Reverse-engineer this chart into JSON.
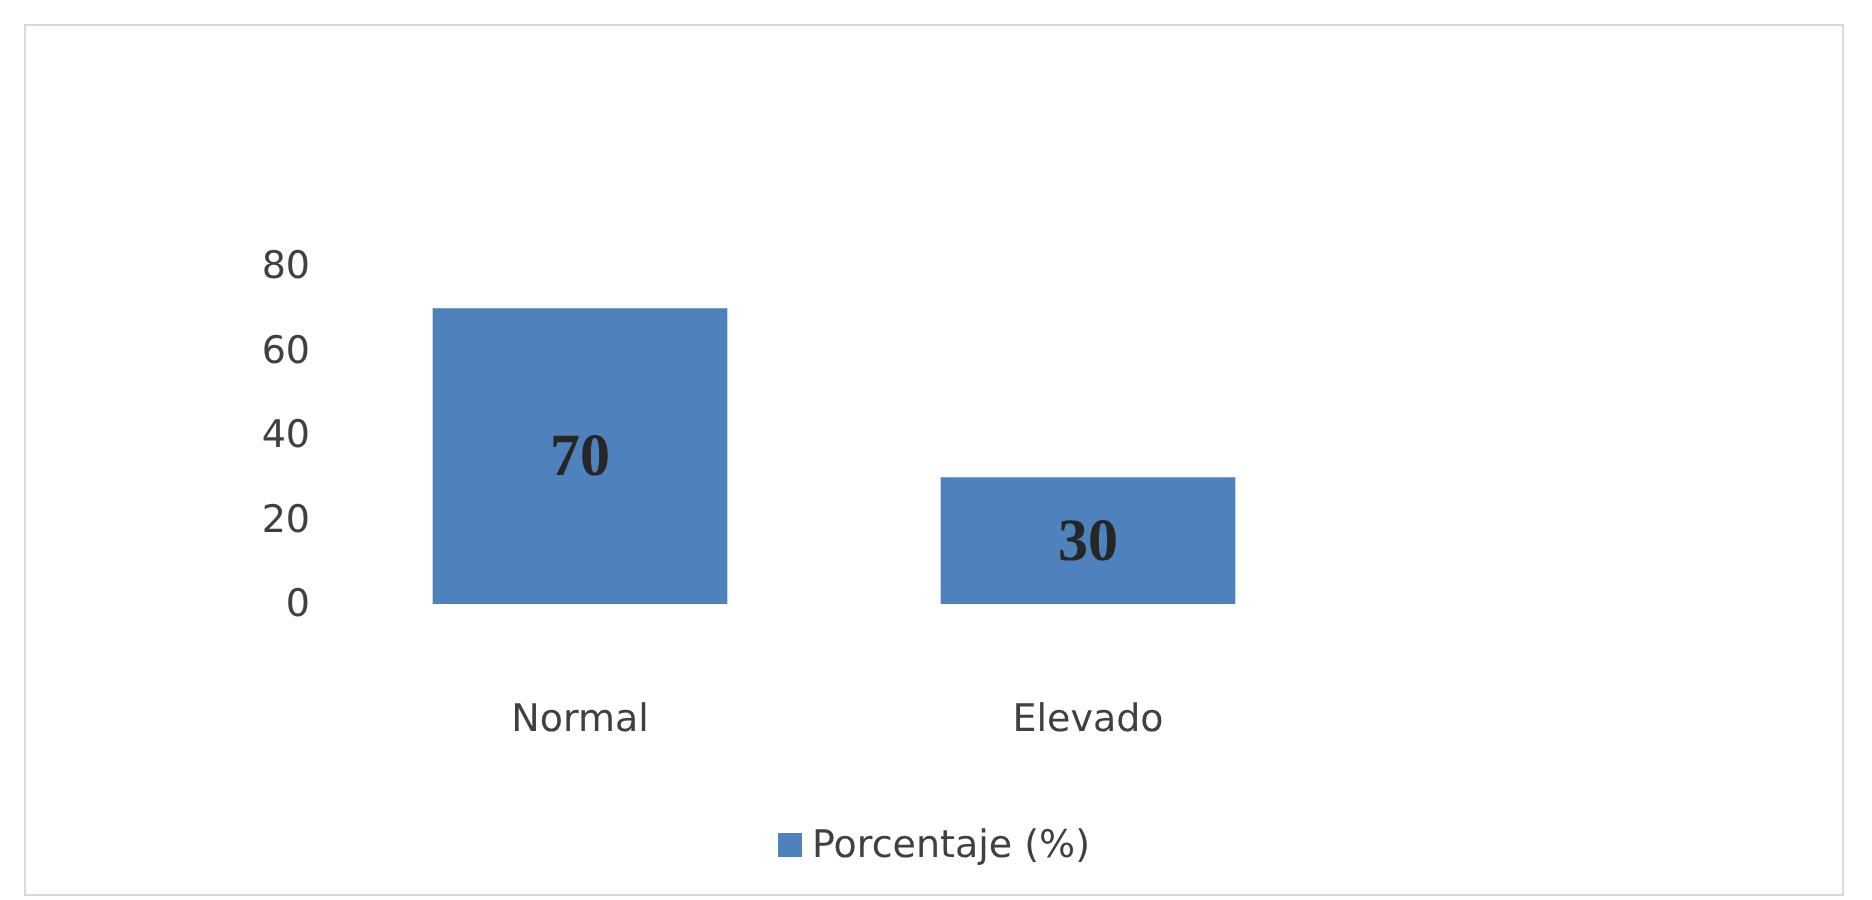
{
  "chart_data": {
    "type": "bar",
    "categories": [
      "Normal",
      "Elevado"
    ],
    "series": [
      {
        "name": "Porcentaje (%)",
        "color": "#4f81bd",
        "values": [
          70,
          30
        ]
      }
    ],
    "ylim": [
      0,
      80
    ],
    "yticks": [
      0,
      20,
      40,
      60,
      80
    ],
    "data_labels": true,
    "grid": false,
    "legend": "bottom"
  }
}
